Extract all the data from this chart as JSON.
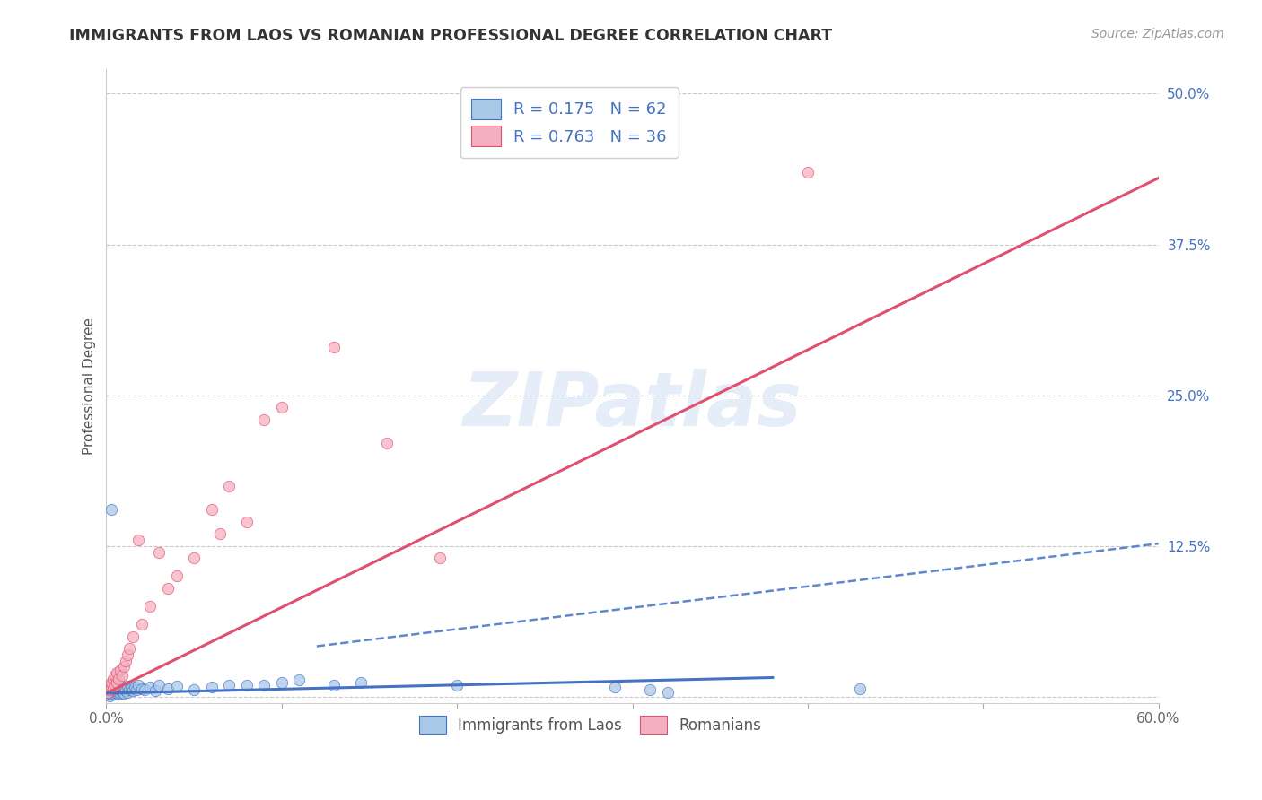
{
  "title": "IMMIGRANTS FROM LAOS VS ROMANIAN PROFESSIONAL DEGREE CORRELATION CHART",
  "source": "Source: ZipAtlas.com",
  "xlabel": "",
  "ylabel": "Professional Degree",
  "xlim": [
    0.0,
    0.6
  ],
  "ylim": [
    -0.005,
    0.52
  ],
  "xticks": [
    0.0,
    0.1,
    0.2,
    0.3,
    0.4,
    0.5,
    0.6
  ],
  "xticklabels": [
    "0.0%",
    "",
    "",
    "",
    "",
    "",
    "60.0%"
  ],
  "yticks": [
    0.0,
    0.125,
    0.25,
    0.375,
    0.5
  ],
  "yticklabels": [
    "",
    "12.5%",
    "25.0%",
    "37.5%",
    "50.0%"
  ],
  "laos_R": 0.175,
  "laos_N": 62,
  "romanian_R": 0.763,
  "romanian_N": 36,
  "laos_color": "#a8c8e8",
  "romanian_color": "#f5b0c0",
  "laos_line_color": "#4472c4",
  "romanian_line_color": "#e05070",
  "watermark": "ZIPatlas",
  "laos_solid_line": {
    "x0": 0.0,
    "y0": 0.003,
    "x1": 0.38,
    "y1": 0.016
  },
  "laos_dashed_line": {
    "x0": 0.12,
    "y0": 0.042,
    "x1": 0.6,
    "y1": 0.127
  },
  "romanian_line": {
    "x0": 0.0,
    "y0": 0.003,
    "x1": 0.6,
    "y1": 0.43
  },
  "laos_scatter_x": [
    0.001,
    0.001,
    0.002,
    0.002,
    0.002,
    0.002,
    0.003,
    0.003,
    0.003,
    0.003,
    0.003,
    0.004,
    0.004,
    0.004,
    0.004,
    0.005,
    0.005,
    0.005,
    0.005,
    0.006,
    0.006,
    0.006,
    0.007,
    0.007,
    0.007,
    0.008,
    0.008,
    0.009,
    0.009,
    0.01,
    0.01,
    0.011,
    0.012,
    0.012,
    0.013,
    0.014,
    0.015,
    0.016,
    0.017,
    0.018,
    0.02,
    0.022,
    0.025,
    0.028,
    0.03,
    0.035,
    0.04,
    0.05,
    0.06,
    0.07,
    0.08,
    0.09,
    0.1,
    0.11,
    0.13,
    0.145,
    0.2,
    0.29,
    0.31,
    0.32,
    0.003,
    0.43
  ],
  "laos_scatter_y": [
    0.002,
    0.004,
    0.001,
    0.003,
    0.005,
    0.007,
    0.002,
    0.004,
    0.006,
    0.008,
    0.01,
    0.003,
    0.005,
    0.007,
    0.009,
    0.002,
    0.004,
    0.006,
    0.008,
    0.003,
    0.005,
    0.007,
    0.002,
    0.004,
    0.008,
    0.003,
    0.006,
    0.004,
    0.007,
    0.003,
    0.008,
    0.005,
    0.004,
    0.009,
    0.006,
    0.007,
    0.005,
    0.008,
    0.006,
    0.01,
    0.007,
    0.006,
    0.008,
    0.005,
    0.01,
    0.007,
    0.009,
    0.006,
    0.008,
    0.01,
    0.01,
    0.01,
    0.012,
    0.014,
    0.01,
    0.012,
    0.01,
    0.008,
    0.006,
    0.004,
    0.155,
    0.007
  ],
  "romanian_scatter_x": [
    0.001,
    0.002,
    0.002,
    0.003,
    0.003,
    0.004,
    0.004,
    0.005,
    0.005,
    0.006,
    0.006,
    0.007,
    0.008,
    0.009,
    0.01,
    0.011,
    0.012,
    0.013,
    0.015,
    0.018,
    0.02,
    0.025,
    0.03,
    0.035,
    0.04,
    0.05,
    0.06,
    0.07,
    0.09,
    0.1,
    0.13,
    0.16,
    0.19,
    0.4,
    0.065,
    0.08
  ],
  "romanian_scatter_y": [
    0.004,
    0.006,
    0.01,
    0.008,
    0.012,
    0.007,
    0.015,
    0.01,
    0.018,
    0.012,
    0.02,
    0.015,
    0.022,
    0.018,
    0.025,
    0.03,
    0.035,
    0.04,
    0.05,
    0.13,
    0.06,
    0.075,
    0.12,
    0.09,
    0.1,
    0.115,
    0.155,
    0.175,
    0.23,
    0.24,
    0.29,
    0.21,
    0.115,
    0.435,
    0.135,
    0.145
  ]
}
